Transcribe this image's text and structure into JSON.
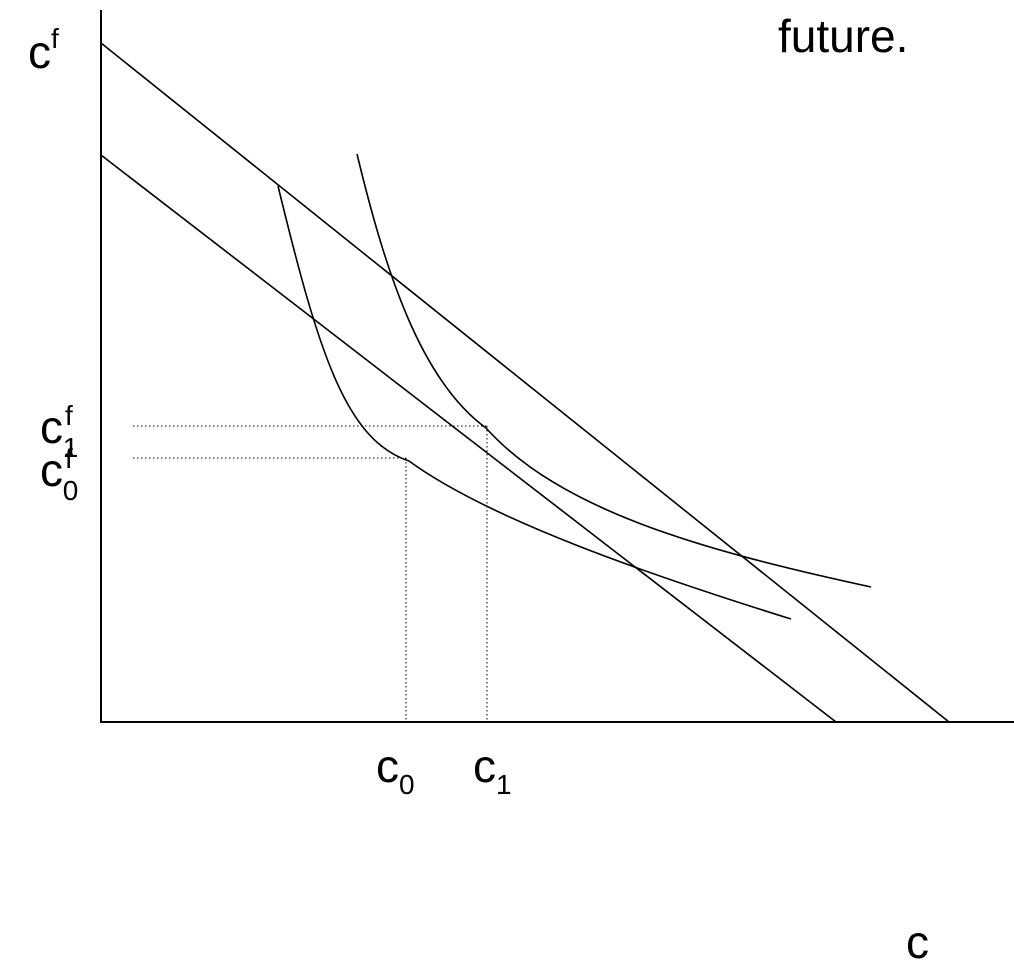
{
  "header": {
    "title_fragment": "future."
  },
  "axes": {
    "y_axis_label": "c",
    "y_axis_label_sup": "f",
    "x_axis_label": "c"
  },
  "ticks": {
    "cf1_main": "c",
    "cf1_sup": "f",
    "cf1_sub": "1",
    "cf0_main": "c",
    "cf0_sup": "f",
    "cf0_sub": "0",
    "c0_main": "c",
    "c0_sub": "0",
    "c1_main": "c",
    "c1_sub": "1"
  },
  "elements": {
    "budget_lines": 2,
    "indifference_curves": 2,
    "initial_bundle": "c0, cf0",
    "new_bundle": "c1, cf1"
  }
}
